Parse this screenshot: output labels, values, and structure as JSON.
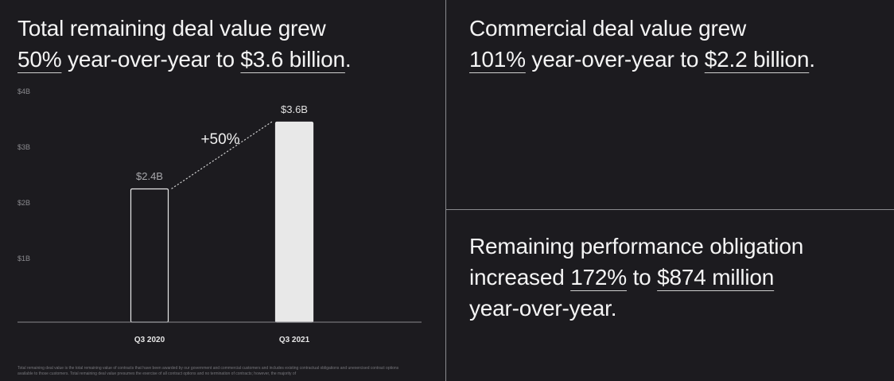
{
  "left_panel": {
    "headline": {
      "line1": "Total remaining deal value grew",
      "pct": "50%",
      "mid": " year-over-year to ",
      "amount": "$3.6 billion",
      "end": "."
    },
    "footnote": "Total remaining deal value is the total remaining value of contracts that have been awarded by our government and commercial customers and includes existing contractual obligations and unexercised contract options available to those customers. Total remaining deal value presumes the exercise of all contract options and no termination of contracts; however, the majority of"
  },
  "right_top": {
    "headline": {
      "line1": "Commercial deal value grew",
      "pct": "101%",
      "mid": " year-over-year to ",
      "amount": "$2.2 billion",
      "end": "."
    }
  },
  "right_bottom": {
    "headline": {
      "line1": "Remaining performance obligation",
      "pre": "increased ",
      "pct": "172%",
      "mid": " to ",
      "amount": "$874 million",
      "line3": "year-over-year."
    }
  },
  "chart_data": {
    "type": "bar",
    "categories": [
      "Q3 2020",
      "Q3 2021"
    ],
    "values": [
      2.4,
      3.6
    ],
    "value_labels": [
      "$2.4B",
      "$3.6B"
    ],
    "y_ticks": [
      1,
      2,
      3,
      4
    ],
    "y_tick_labels": [
      "$1B",
      "$2B",
      "$3B",
      "$4B"
    ],
    "ylim": [
      0,
      4
    ],
    "annotation": "+50%",
    "grid": false,
    "colors": {
      "bar_2020_fill": "#1c1b1f",
      "bar_2020_stroke": "#e8e8e8",
      "bar_2021_fill": "#e8e8e8",
      "axis": "#8a8a8e",
      "tick_label": "#8a8a8e",
      "value_label_2020": "#a8a8ac",
      "value_label_2021": "#e0e0e0"
    }
  }
}
